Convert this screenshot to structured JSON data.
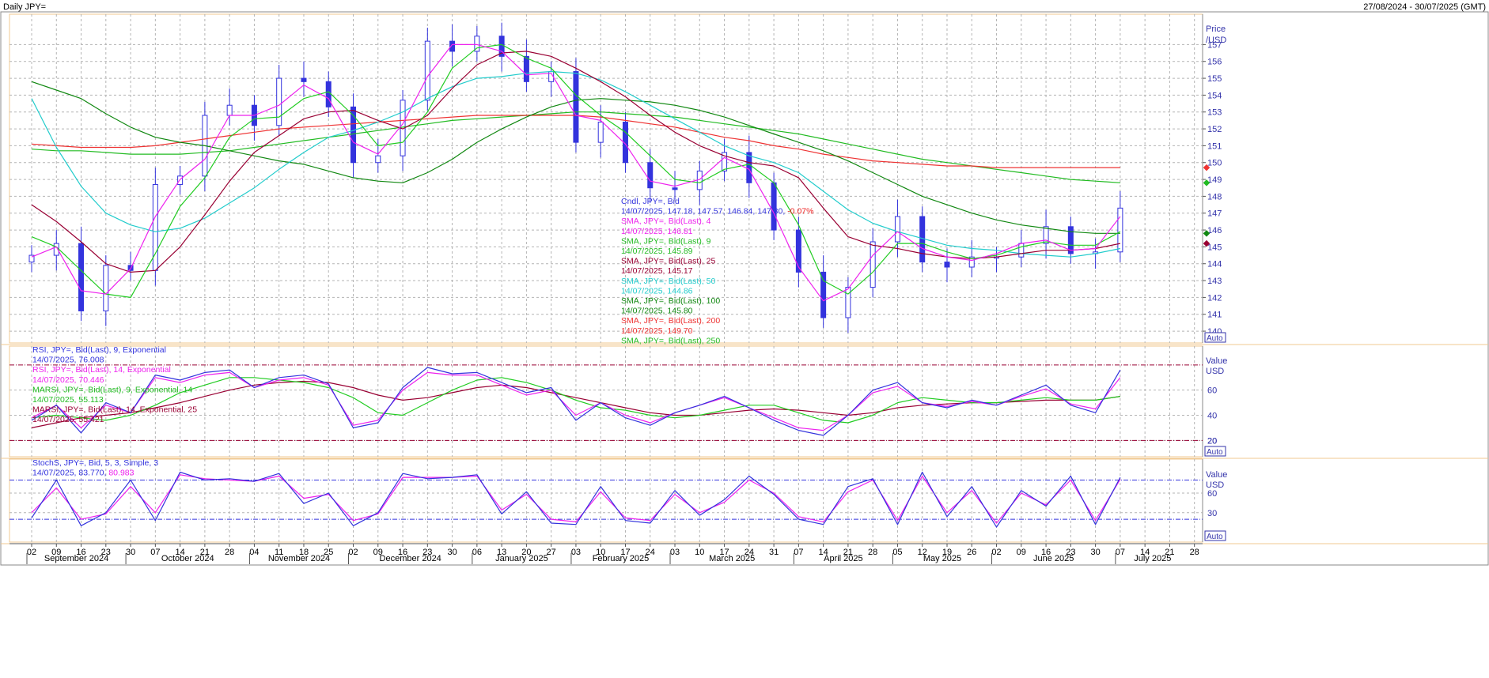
{
  "header": {
    "title": "Daily JPY=",
    "date_range": "27/08/2024 - 30/07/2025 (GMT)"
  },
  "price_axis": {
    "title_line1": "Price",
    "title_line2": "/USD",
    "auto_label": "Auto"
  },
  "rsi_axis": {
    "title_line1": "Value",
    "title_line2": "USD",
    "auto_label": "Auto"
  },
  "stoch_axis": {
    "title_line1": "Value",
    "title_line2": "USD",
    "auto_label": "Auto"
  },
  "colors": {
    "candle": "#3333dd",
    "sma4": "#ee22ee",
    "sma9": "#22cc22",
    "sma25": "#990033",
    "sma50": "#22cccc",
    "sma100": "#118811",
    "sma200": "#ee3333",
    "sma250": "#22bb22",
    "rsi9": "#3333dd",
    "rsi14": "#ee22ee",
    "marsi9": "#22cc22",
    "marsi14": "#990033",
    "stoch_k": "#3333dd",
    "stoch_d": "#ee22ee",
    "grid": "#b4b4b4",
    "panel_border": "#f0c890"
  },
  "price_legend": [
    {
      "text": "Cndl, JPY=, Bid",
      "color": "#3333dd"
    },
    {
      "text": "14/07/2025, 147.18, 147.57, 146.84, 147.30, ",
      "color": "#3333dd",
      "suffix": "-0.07%",
      "suffix_color": "#ee2222"
    },
    {
      "text": "SMA, JPY=, Bid(Last),  4",
      "color": "#ee22ee"
    },
    {
      "text": "14/07/2025, 146.81",
      "color": "#ee22ee"
    },
    {
      "text": "SMA, JPY=, Bid(Last),  9",
      "color": "#22bb22"
    },
    {
      "text": "14/07/2025, 145.89",
      "color": "#22bb22"
    },
    {
      "text": "SMA, JPY=, Bid(Last),  25",
      "color": "#990033"
    },
    {
      "text": "14/07/2025, 145.17",
      "color": "#990033"
    },
    {
      "text": "SMA, JPY=, Bid(Last),  50",
      "color": "#22cccc"
    },
    {
      "text": "14/07/2025, 144.86",
      "color": "#22cccc"
    },
    {
      "text": "SMA, JPY=, Bid(Last),  100",
      "color": "#118811"
    },
    {
      "text": "14/07/2025, 145.80",
      "color": "#118811"
    },
    {
      "text": "SMA, JPY=, Bid(Last),  200",
      "color": "#ee3333"
    },
    {
      "text": "14/07/2025, 149.70",
      "color": "#ee3333"
    },
    {
      "text": "SMA, JPY=, Bid(Last),  250",
      "color": "#22bb22"
    }
  ],
  "rsi_legend": [
    {
      "text": "RSI, JPY=, Bid(Last),  9, Exponential",
      "color": "#3333dd"
    },
    {
      "text": "14/07/2025, 76.008",
      "color": "#3333dd"
    },
    {
      "text": "RSI, JPY=, Bid(Last),  14, Exponential",
      "color": "#ee22ee"
    },
    {
      "text": "14/07/2025, 70.446",
      "color": "#ee22ee"
    },
    {
      "text": "MARSI, JPY=, Bid(Last),  9, Exponential, 14",
      "color": "#22bb22"
    },
    {
      "text": "14/07/2025, 55.113",
      "color": "#22bb22"
    },
    {
      "text": "MARSI, JPY=, Bid(Last),  14, Exponential, 25",
      "color": "#990033"
    },
    {
      "text": "14/07/2025, 55.421",
      "color": "#990033"
    }
  ],
  "stoch_legend": [
    {
      "text": "StochS, JPY=, Bid,  5, 3, Simple, 3",
      "color": "#3333dd"
    },
    {
      "text": "14/07/2025, 83.770, ",
      "color": "#3333dd",
      "suffix": "80.983",
      "suffix_color": "#ee22ee"
    }
  ],
  "x_days": [
    "02",
    "09",
    "16",
    "23",
    "30",
    "07",
    "14",
    "21",
    "28",
    "04",
    "11",
    "18",
    "25",
    "02",
    "09",
    "16",
    "23",
    "30",
    "06",
    "13",
    "20",
    "27",
    "03",
    "10",
    "17",
    "24",
    "03",
    "10",
    "17",
    "24",
    "31",
    "07",
    "14",
    "21",
    "28",
    "05",
    "12",
    "19",
    "26",
    "02",
    "09",
    "16",
    "23",
    "30",
    "07",
    "14",
    "21",
    "28"
  ],
  "x_months": [
    "September 2024",
    "October 2024",
    "November 2024",
    "December 2024",
    "January 2025",
    "February 2025",
    "March 2025",
    "April 2025",
    "May 2025",
    "June 2025",
    "July 2025"
  ],
  "chart_data": [
    {
      "type": "line",
      "title": "Daily JPY=",
      "ylabel": "Price /USD",
      "ylim": [
        139.3,
        158.8
      ],
      "y_ticks": [
        140,
        141,
        142,
        143,
        144,
        145,
        146,
        147,
        148,
        149,
        150,
        151,
        152,
        153,
        154,
        155,
        156,
        157
      ],
      "x_unit": "week index (0 = 02 Sep 2024)",
      "weekly_close": [
        144.5,
        145.2,
        141.2,
        143.9,
        143.6,
        148.7,
        149.2,
        152.8,
        153.4,
        152.2,
        155.0,
        154.8,
        153.3,
        150.0,
        150.4,
        153.7,
        157.2,
        156.6,
        157.5,
        156.3,
        154.8,
        155.4,
        151.2,
        152.4,
        150.0,
        148.5,
        148.4,
        149.5,
        150.6,
        148.8,
        146.0,
        143.5,
        140.8,
        142.6,
        145.3,
        146.8,
        144.1,
        143.8,
        144.4,
        144.4,
        145.2,
        146.2,
        144.6,
        144.7,
        147.3
      ],
      "sma_4_weekly": [
        144.4,
        145.0,
        142.4,
        142.2,
        143.7,
        146.8,
        149.0,
        150.2,
        152.8,
        152.8,
        153.4,
        154.6,
        153.8,
        151.2,
        150.5,
        152.3,
        155.1,
        157.0,
        157.0,
        156.6,
        155.2,
        155.3,
        152.8,
        152.5,
        151.1,
        148.9,
        148.6,
        149.0,
        150.3,
        149.6,
        147.0,
        143.8,
        141.8,
        142.5,
        144.5,
        145.9,
        144.9,
        144.4,
        144.2,
        144.6,
        145.2,
        145.4,
        144.8,
        144.9,
        146.8
      ],
      "sma_9_weekly": [
        145.6,
        145.0,
        143.6,
        142.2,
        142.0,
        144.6,
        147.4,
        149.1,
        151.5,
        152.6,
        152.7,
        153.8,
        154.2,
        152.8,
        151.0,
        151.2,
        153.0,
        155.6,
        156.8,
        157.0,
        156.2,
        155.6,
        154.0,
        152.8,
        151.8,
        150.4,
        149.0,
        148.8,
        149.6,
        149.9,
        148.8,
        146.3,
        143.0,
        142.2,
        143.5,
        145.2,
        145.2,
        144.7,
        144.3,
        144.5,
        145.0,
        145.3,
        145.1,
        145.1,
        145.9
      ],
      "sma_25_weekly": [
        147.5,
        146.5,
        145.3,
        144.0,
        143.5,
        143.6,
        145.0,
        146.9,
        148.9,
        150.6,
        151.6,
        152.6,
        153.0,
        153.1,
        152.5,
        152.0,
        152.8,
        154.4,
        155.8,
        156.5,
        156.6,
        156.3,
        155.6,
        154.8,
        153.9,
        152.8,
        151.8,
        151.0,
        150.4,
        150.0,
        149.8,
        149.1,
        147.3,
        145.6,
        145.1,
        144.9,
        144.6,
        144.4,
        144.3,
        144.4,
        144.6,
        144.8,
        144.8,
        144.9,
        145.2
      ],
      "sma_50_weekly": [
        153.8,
        150.9,
        148.6,
        147.0,
        146.3,
        145.9,
        146.1,
        146.7,
        147.6,
        148.5,
        149.6,
        150.6,
        151.5,
        151.9,
        152.4,
        153.0,
        153.8,
        154.5,
        155.0,
        155.1,
        155.3,
        155.4,
        155.3,
        154.9,
        154.2,
        153.4,
        152.6,
        151.8,
        151.0,
        150.4,
        150.0,
        149.4,
        148.3,
        147.2,
        146.4,
        145.9,
        145.5,
        145.1,
        144.9,
        144.8,
        144.6,
        144.5,
        144.4,
        144.6,
        144.9
      ],
      "sma_100_weekly": [
        154.8,
        154.3,
        153.8,
        152.9,
        152.1,
        151.5,
        151.2,
        151.0,
        150.7,
        150.4,
        150.1,
        149.9,
        149.5,
        149.1,
        148.9,
        148.8,
        149.4,
        150.2,
        151.2,
        152.0,
        152.7,
        153.3,
        153.7,
        153.8,
        153.7,
        153.6,
        153.4,
        153.1,
        152.7,
        152.2,
        151.7,
        151.2,
        150.7,
        150.1,
        149.4,
        148.7,
        148.0,
        147.5,
        147.0,
        146.6,
        146.3,
        146.1,
        145.9,
        145.8,
        145.8
      ],
      "sma_200_weekly": [
        151.1,
        151.0,
        150.9,
        150.9,
        150.9,
        151.0,
        151.2,
        151.4,
        151.6,
        151.8,
        152.0,
        152.1,
        152.2,
        152.3,
        152.4,
        152.5,
        152.6,
        152.7,
        152.8,
        152.8,
        152.8,
        152.8,
        152.8,
        152.7,
        152.5,
        152.3,
        152.1,
        151.8,
        151.5,
        151.3,
        151.0,
        150.8,
        150.5,
        150.3,
        150.1,
        150.0,
        149.9,
        149.8,
        149.8,
        149.7,
        149.7,
        149.7,
        149.7,
        149.7,
        149.7
      ],
      "sma_250_weekly": [
        150.8,
        150.7,
        150.7,
        150.6,
        150.5,
        150.5,
        150.5,
        150.6,
        150.7,
        150.9,
        151.1,
        151.3,
        151.5,
        151.7,
        151.9,
        152.1,
        152.3,
        152.5,
        152.6,
        152.7,
        152.8,
        152.9,
        153.0,
        153.0,
        152.9,
        152.8,
        152.7,
        152.5,
        152.3,
        152.1,
        151.9,
        151.7,
        151.4,
        151.1,
        150.8,
        150.5,
        150.2,
        150.0,
        149.8,
        149.6,
        149.4,
        149.2,
        149.0,
        148.9,
        148.8
      ]
    },
    {
      "type": "line",
      "title": "RSI",
      "ylabel": "Value USD",
      "ylim": [
        7,
        95
      ],
      "y_ticks": [
        20,
        40,
        60
      ],
      "reference_lines": [
        20,
        80
      ],
      "x_unit": "week index (0 = 02 Sep 2024)",
      "rsi_9_weekly": [
        36,
        48,
        26,
        50,
        42,
        72,
        68,
        74,
        76,
        62,
        70,
        72,
        65,
        30,
        34,
        62,
        78,
        73,
        74,
        66,
        58,
        62,
        36,
        50,
        38,
        32,
        42,
        48,
        55,
        46,
        36,
        28,
        24,
        40,
        60,
        66,
        50,
        46,
        52,
        48,
        56,
        64,
        48,
        42,
        76
      ],
      "rsi_14_weekly": [
        38,
        48,
        30,
        48,
        42,
        70,
        66,
        72,
        74,
        62,
        68,
        70,
        64,
        32,
        36,
        60,
        74,
        72,
        72,
        64,
        56,
        60,
        40,
        50,
        40,
        34,
        42,
        48,
        54,
        46,
        38,
        30,
        28,
        40,
        58,
        63,
        50,
        47,
        51,
        48,
        55,
        61,
        49,
        45,
        70
      ],
      "marsi_9_weekly": [
        38,
        40,
        38,
        36,
        40,
        48,
        58,
        64,
        70,
        70,
        68,
        66,
        62,
        54,
        42,
        40,
        50,
        60,
        68,
        70,
        66,
        60,
        52,
        46,
        44,
        40,
        38,
        40,
        44,
        48,
        48,
        42,
        36,
        34,
        40,
        50,
        54,
        52,
        50,
        50,
        52,
        54,
        52,
        52,
        55
      ],
      "marsi_14_weekly": [
        30,
        34,
        38,
        40,
        42,
        46,
        50,
        55,
        60,
        64,
        66,
        67,
        66,
        62,
        56,
        52,
        54,
        58,
        62,
        64,
        62,
        58,
        54,
        50,
        46,
        42,
        40,
        40,
        42,
        44,
        45,
        44,
        42,
        40,
        42,
        46,
        48,
        49,
        50,
        50,
        51,
        52,
        52,
        52,
        55
      ]
    },
    {
      "type": "line",
      "title": "StochS",
      "ylabel": "Value USD",
      "ylim": [
        -15,
        112
      ],
      "y_ticks": [
        30,
        60
      ],
      "reference_lines": [
        20,
        80
      ],
      "x_unit": "week index (0 = 02 Sep 2024)",
      "k_weekly": [
        22,
        80,
        10,
        30,
        80,
        18,
        92,
        80,
        82,
        78,
        90,
        44,
        60,
        10,
        30,
        90,
        82,
        84,
        88,
        28,
        62,
        14,
        12,
        70,
        18,
        14,
        64,
        26,
        50,
        86,
        58,
        20,
        12,
        70,
        82,
        12,
        92,
        24,
        70,
        8,
        64,
        40,
        86,
        12,
        84
      ],
      "d_weekly": [
        30,
        68,
        20,
        28,
        70,
        30,
        88,
        82,
        80,
        78,
        86,
        52,
        58,
        18,
        28,
        84,
        84,
        84,
        86,
        34,
        58,
        20,
        16,
        62,
        22,
        18,
        58,
        30,
        46,
        80,
        60,
        24,
        16,
        62,
        80,
        18,
        86,
        30,
        64,
        14,
        60,
        42,
        80,
        18,
        81
      ]
    }
  ]
}
